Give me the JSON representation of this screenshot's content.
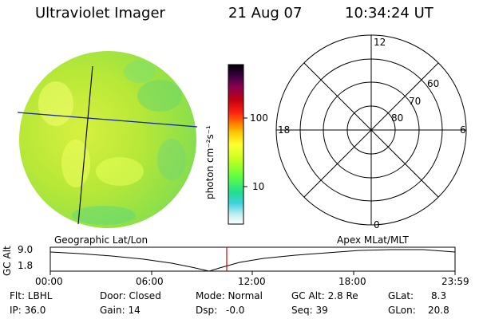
{
  "header": {
    "instrument": "Ultraviolet Imager",
    "date": "21 Aug 07",
    "time": "10:34:24 UT"
  },
  "colorbar": {
    "unit_label": "photon cm⁻²s⁻¹",
    "tick_labels": [
      "100",
      "10"
    ],
    "colors": [
      "#000000",
      "#3a0040",
      "#8a0050",
      "#c00010",
      "#ff2010",
      "#ff7000",
      "#ffc000",
      "#ffff30",
      "#c0ff20",
      "#60ff40",
      "#20e090",
      "#40d0e0",
      "#c0f0f0",
      "#ffffff"
    ]
  },
  "polar_plot": {
    "clock_labels": [
      "12",
      "18",
      "6",
      "0"
    ],
    "ring_labels": [
      "60",
      "70",
      "80"
    ]
  },
  "timeline": {
    "left_title": "Geographic Lat/Lon",
    "right_title": "Apex MLat/MLT",
    "axis_label": "GC Alt",
    "y_labels": [
      "9.0",
      "1.8"
    ],
    "time_ticks": [
      "00:00",
      "06:00",
      "12:00",
      "18:00",
      "23:59"
    ],
    "current_marker_color": "#dd0000"
  },
  "status": {
    "filter": "Flt: LBHL",
    "door": "Door: Closed",
    "mode": "Mode: Normal",
    "gc_alt": "GC Alt: 2.8 Re",
    "glat_label": "GLat:",
    "glat_value": "8.3",
    "ip": "IP: 36.0",
    "gain": "Gain: 14",
    "dsp": "Dsp:",
    "dsp_value": "-0.0",
    "seq": "Seq: 39",
    "glon_label": "GLon:",
    "glon_value": "20.8"
  }
}
